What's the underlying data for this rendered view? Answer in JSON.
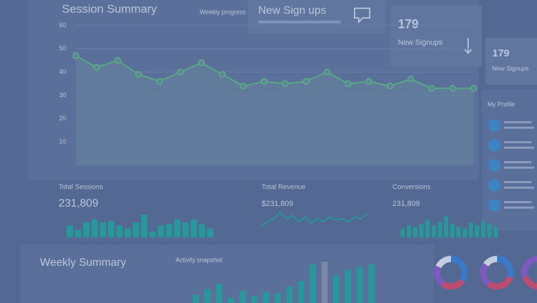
{
  "session_summary": {
    "title": "Session Summary",
    "subtitle": "Weekly progress",
    "ylim": [
      0,
      65
    ],
    "yticks": [
      10,
      20,
      30,
      40,
      50,
      60
    ],
    "color": "#5fbf7f",
    "values": [
      47,
      42,
      45,
      39,
      36,
      40,
      44,
      39,
      34,
      36,
      35,
      36,
      40,
      35,
      36,
      34,
      37,
      33,
      33,
      33
    ]
  },
  "signups_card": {
    "title": "New Sign ups"
  },
  "stat_cards": [
    {
      "value": 179,
      "label": "New Signups"
    },
    {
      "value": 179,
      "label": "New Signups"
    }
  ],
  "kpis": [
    {
      "title": "Total Sessions",
      "value": "231,809",
      "color": "#22a89c",
      "bars": [
        8,
        5,
        10,
        12,
        10,
        11,
        8,
        6,
        10,
        15,
        4,
        8,
        9,
        12,
        10,
        12,
        9,
        6
      ]
    },
    {
      "title": "Total Revenue",
      "value": "$231,809",
      "color": "#22a89c",
      "line": [
        3,
        6,
        8,
        12,
        8,
        10,
        6,
        9,
        5,
        8,
        6,
        9,
        7,
        8,
        6,
        9,
        8,
        11
      ]
    },
    {
      "title": "Conversions",
      "value": "231,809",
      "color": "#22a89c",
      "bars": [
        6,
        8,
        7,
        9,
        12,
        8,
        10,
        14,
        9,
        7,
        6,
        10,
        8,
        11,
        9,
        7
      ]
    }
  ],
  "profile": {
    "title": "My Profile"
  },
  "weekly_summary": {
    "title": "Weekly Summary",
    "subtitle": "Activity snapshot",
    "color": "#22a89c",
    "highlight": "#8a93a8",
    "bars": [
      6,
      10,
      14,
      4,
      9,
      5,
      8,
      7,
      12,
      16,
      28,
      30,
      20,
      24,
      26,
      28
    ]
  },
  "donuts": [
    {
      "values": [
        35,
        25,
        22,
        18
      ],
      "colors": [
        "#3b82d6",
        "#d94b6a",
        "#8e5bc9",
        "#e2e8f0"
      ]
    },
    {
      "values": [
        30,
        30,
        25,
        15
      ],
      "colors": [
        "#3b82d6",
        "#d94b6a",
        "#8e5bc9",
        "#e2e8f0"
      ]
    },
    {
      "values": [
        40,
        30,
        30
      ],
      "colors": [
        "#3b82d6",
        "#d94b6a",
        "#8e5bc9"
      ]
    }
  ]
}
